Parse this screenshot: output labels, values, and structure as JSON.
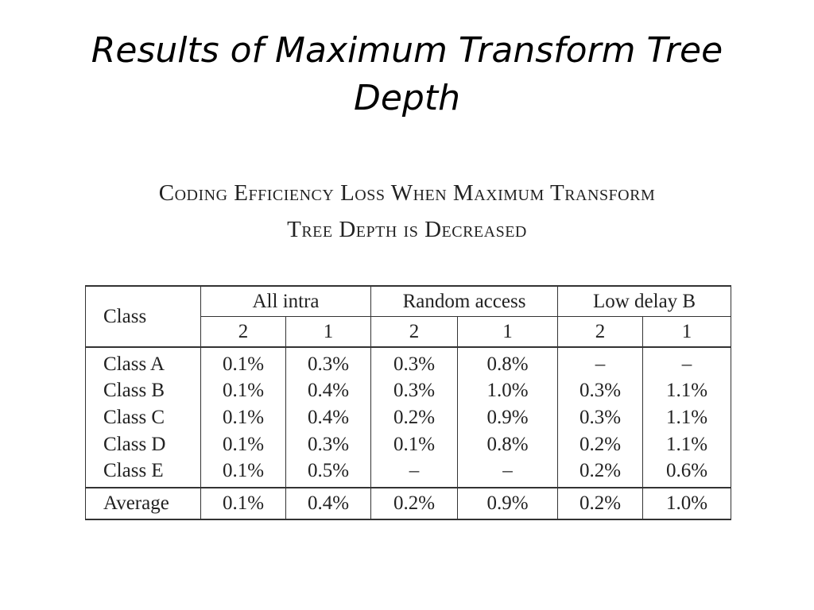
{
  "slide": {
    "title": "Results of Maximum Transform Tree Depth"
  },
  "caption": {
    "line1": "Coding Efficiency Loss When Maximum Transform",
    "line2": "Tree Depth is Decreased"
  },
  "table": {
    "class_header": "Class",
    "groups": [
      "All intra",
      "Random access",
      "Low delay B"
    ],
    "depths": [
      "2",
      "1",
      "2",
      "1",
      "2",
      "1"
    ],
    "rows": [
      {
        "label": "Class A",
        "values": [
          "0.1%",
          "0.3%",
          "0.3%",
          "0.8%",
          "–",
          "–"
        ]
      },
      {
        "label": "Class B",
        "values": [
          "0.1%",
          "0.4%",
          "0.3%",
          "1.0%",
          "0.3%",
          "1.1%"
        ]
      },
      {
        "label": "Class C",
        "values": [
          "0.1%",
          "0.4%",
          "0.2%",
          "0.9%",
          "0.3%",
          "1.1%"
        ]
      },
      {
        "label": "Class D",
        "values": [
          "0.1%",
          "0.3%",
          "0.1%",
          "0.8%",
          "0.2%",
          "1.1%"
        ]
      },
      {
        "label": "Class E",
        "values": [
          "0.1%",
          "0.5%",
          "–",
          "–",
          "0.2%",
          "0.6%"
        ]
      }
    ],
    "average": {
      "label": "Average",
      "values": [
        "0.1%",
        "0.4%",
        "0.2%",
        "0.9%",
        "0.2%",
        "1.0%"
      ]
    }
  }
}
